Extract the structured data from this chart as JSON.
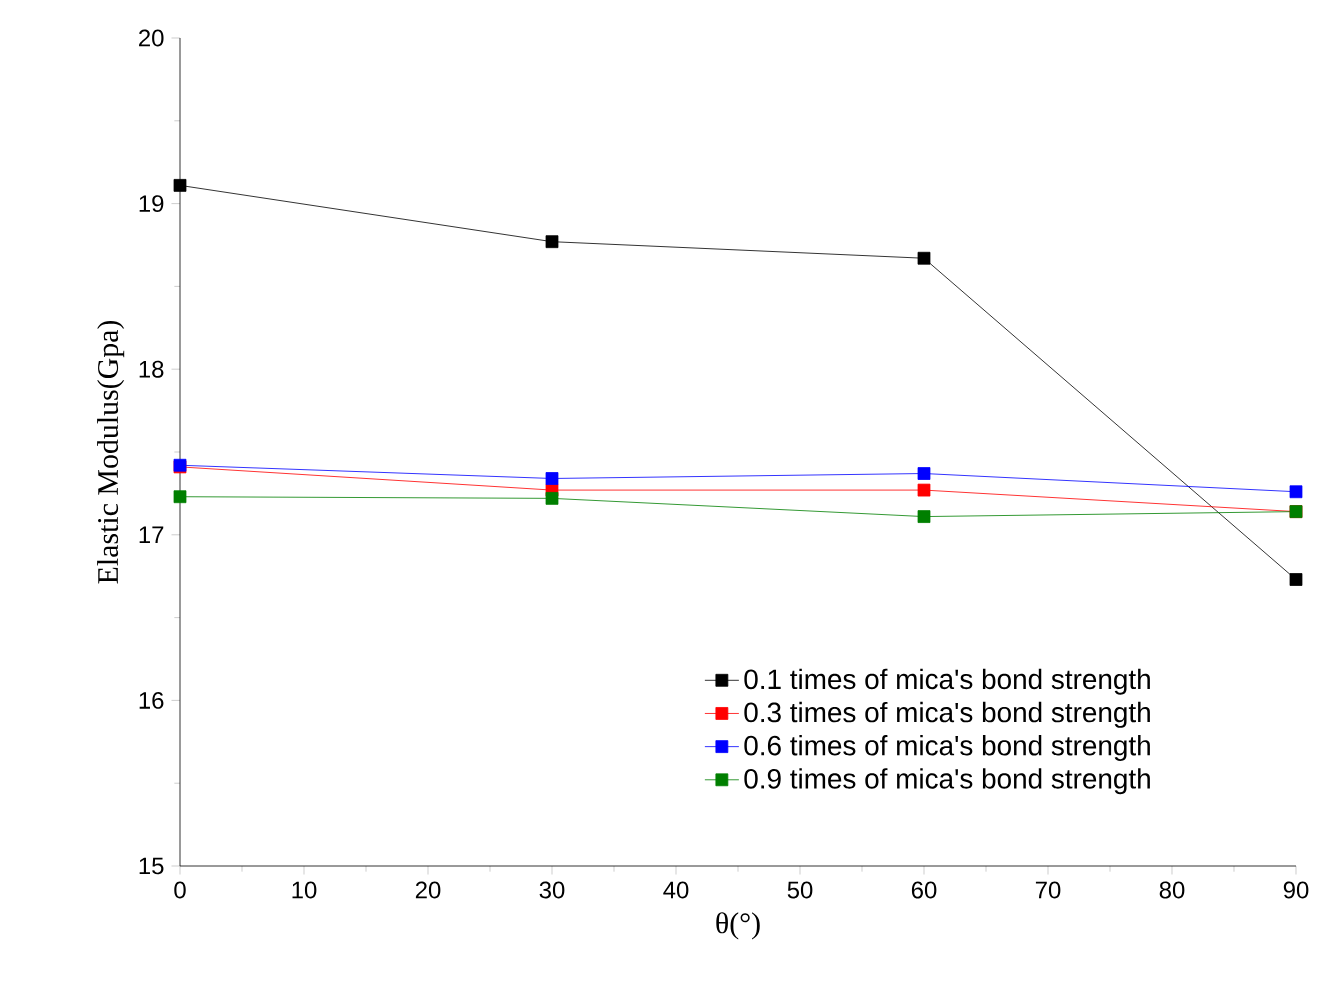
{
  "chart_data": {
    "type": "line",
    "xlabel": "θ(°)",
    "ylabel": "Elastic Modulus(Gpa)",
    "x": [
      0,
      30,
      60,
      90
    ],
    "series": [
      {
        "name": "0.1 times of mica's bond strength",
        "color": "#000000",
        "values": [
          19.11,
          18.77,
          18.67,
          16.73
        ]
      },
      {
        "name": "0.3 times of mica's bond strength",
        "color": "#ff0000",
        "values": [
          17.41,
          17.27,
          17.27,
          17.14
        ]
      },
      {
        "name": "0.6 times of mica's bond strength",
        "color": "#0000ff",
        "values": [
          17.42,
          17.34,
          17.37,
          17.26
        ]
      },
      {
        "name": "0.9 times of mica's bond strength",
        "color": "#007f00",
        "values": [
          17.23,
          17.22,
          17.11,
          17.14
        ]
      }
    ],
    "xlim": [
      0,
      90
    ],
    "ylim": [
      15,
      20
    ],
    "xticks": [
      0,
      10,
      20,
      30,
      40,
      50,
      60,
      70,
      80,
      90
    ],
    "yticks": [
      15,
      16,
      17,
      18,
      19,
      20
    ],
    "legend": "bottom right",
    "marker": "square",
    "line_style": "solid"
  }
}
